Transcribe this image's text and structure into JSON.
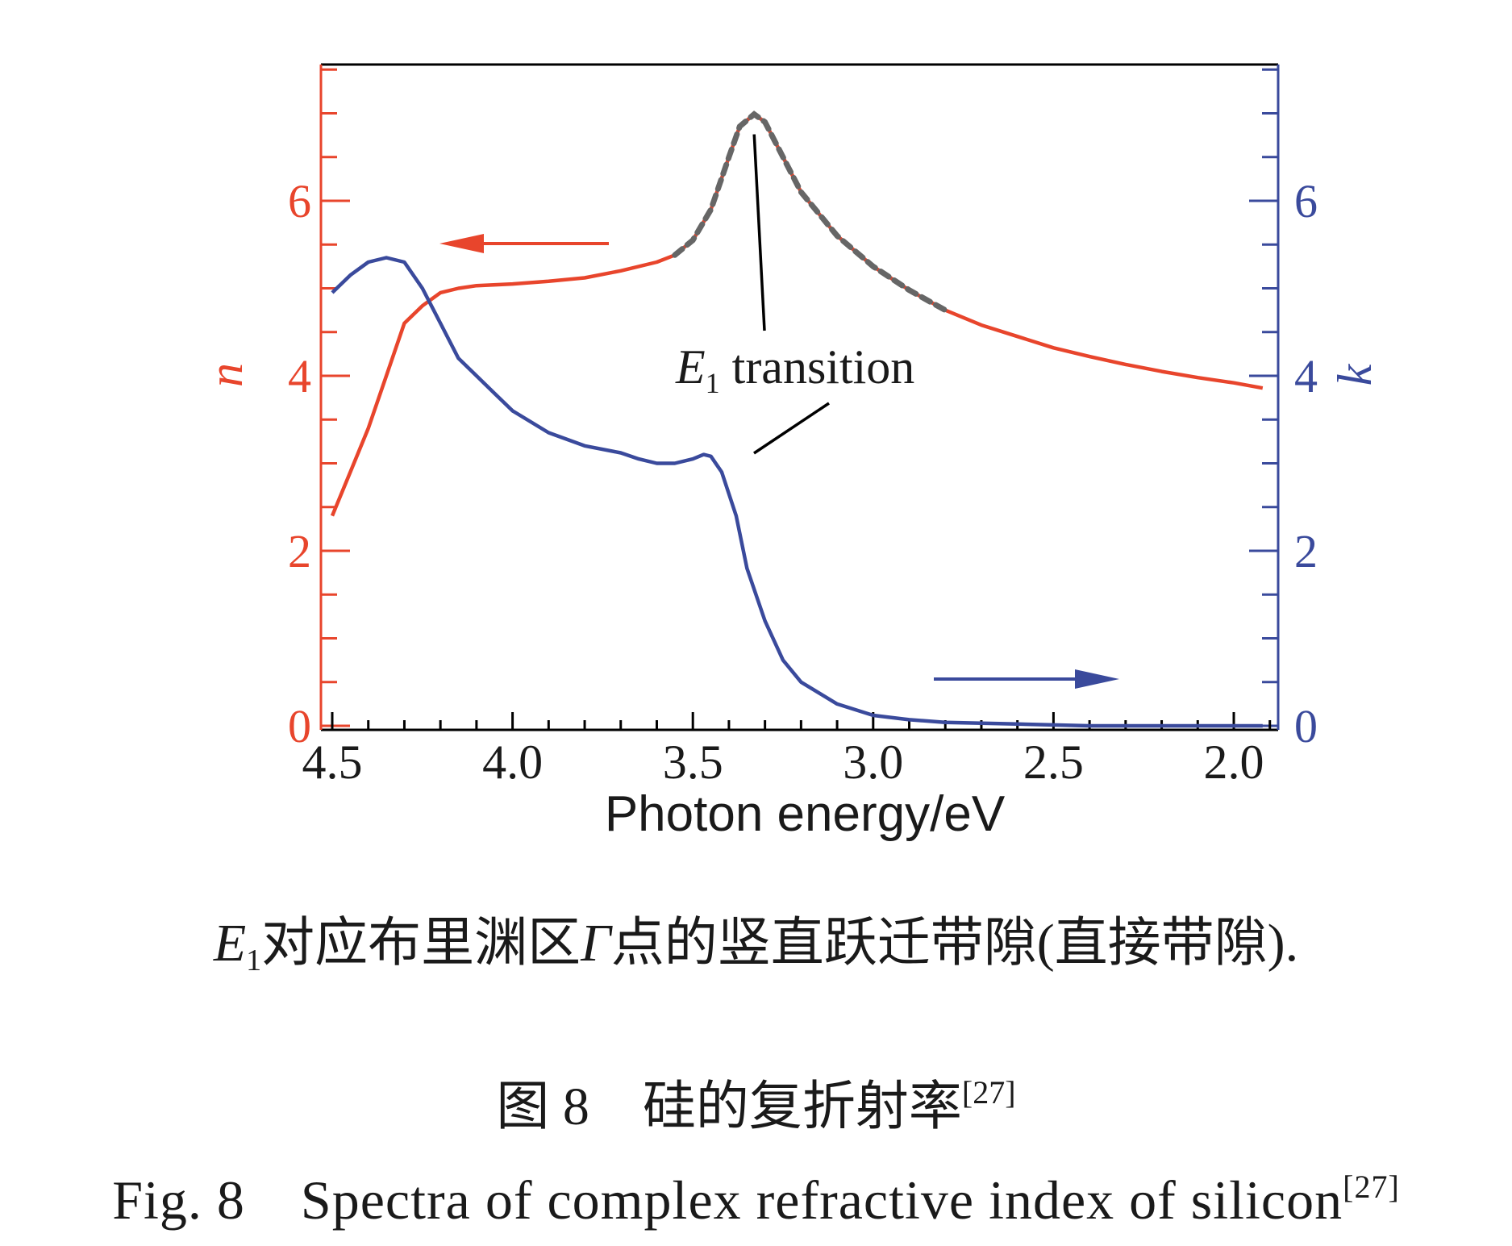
{
  "chart_data": {
    "type": "line",
    "xlabel": "Photon energy/eV",
    "x_ticks": [
      "4.5",
      "4.0",
      "3.5",
      "3.0",
      "2.5",
      "2.0"
    ],
    "xlim": [
      4.5,
      1.9
    ],
    "y_left": {
      "label": "n",
      "ylim": [
        0,
        7.6
      ],
      "ticks": [
        "0",
        "2",
        "4",
        "6"
      ],
      "color": "#e8452c"
    },
    "y_right": {
      "label": "k",
      "ylim": [
        0,
        7.6
      ],
      "ticks": [
        "0",
        "2",
        "4",
        "6"
      ],
      "color": "#3a4a9c"
    },
    "annotation": {
      "main": "E",
      "sub": "1",
      "rest": " transition",
      "point": [
        3.33,
        6.99
      ]
    },
    "series": [
      {
        "axis": "left",
        "color": "#e8452c",
        "x": [
          4.5,
          4.45,
          4.4,
          4.35,
          4.3,
          4.25,
          4.2,
          4.15,
          4.1,
          4.0,
          3.9,
          3.8,
          3.7,
          3.6,
          3.55,
          3.5,
          3.45,
          3.4,
          3.37,
          3.33,
          3.3,
          3.25,
          3.2,
          3.1,
          3.0,
          2.9,
          2.8,
          2.7,
          2.6,
          2.5,
          2.4,
          2.3,
          2.2,
          2.1,
          2.0,
          1.92
        ],
        "values": [
          2.4,
          2.9,
          3.4,
          4.0,
          4.6,
          4.8,
          4.95,
          5.0,
          5.03,
          5.05,
          5.08,
          5.12,
          5.2,
          5.3,
          5.38,
          5.55,
          5.9,
          6.5,
          6.85,
          6.99,
          6.9,
          6.5,
          6.1,
          5.6,
          5.25,
          4.98,
          4.75,
          4.58,
          4.45,
          4.32,
          4.22,
          4.13,
          4.05,
          3.98,
          3.92,
          3.86
        ]
      },
      {
        "axis": "right",
        "color": "#3a4a9c",
        "x": [
          4.5,
          4.45,
          4.4,
          4.35,
          4.3,
          4.25,
          4.2,
          4.15,
          4.1,
          4.05,
          4.0,
          3.9,
          3.8,
          3.7,
          3.65,
          3.6,
          3.55,
          3.5,
          3.47,
          3.45,
          3.42,
          3.38,
          3.35,
          3.3,
          3.25,
          3.2,
          3.1,
          3.0,
          2.9,
          2.8,
          2.7,
          2.6,
          2.5,
          2.4,
          2.3,
          2.2,
          2.1,
          2.0,
          1.92
        ],
        "values": [
          4.95,
          5.15,
          5.3,
          5.35,
          5.3,
          5.0,
          4.6,
          4.2,
          4.0,
          3.8,
          3.6,
          3.35,
          3.2,
          3.12,
          3.05,
          3.0,
          3.0,
          3.05,
          3.1,
          3.08,
          2.9,
          2.4,
          1.8,
          1.2,
          0.75,
          0.5,
          0.25,
          0.12,
          0.07,
          0.04,
          0.03,
          0.02,
          0.01,
          0.0,
          0.0,
          0.0,
          0.0,
          0.0,
          0.0
        ]
      }
    ]
  },
  "captions": {
    "note_main": "E",
    "note_sub": "1",
    "note_pre": "对应布里渊区",
    "note_gamma": "Γ",
    "note_post": "点的竖直跃迁带隙(直接带隙).",
    "zh": "图 8　硅的复折射率",
    "zh_ref": "[27]",
    "en": "Fig. 8　Spectra of complex refractive index of silicon",
    "en_ref": "[27]"
  }
}
